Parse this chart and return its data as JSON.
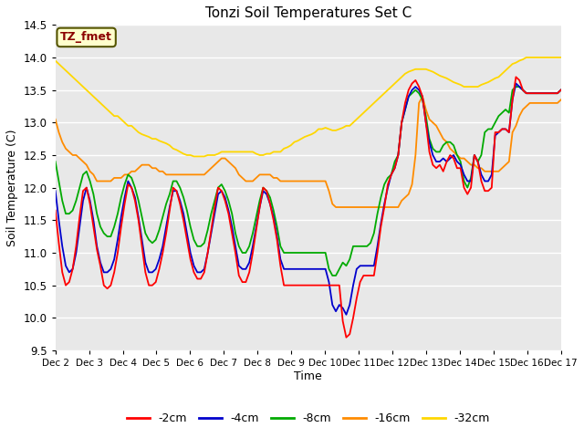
{
  "title": "Tonzi Soil Temperatures Set C",
  "xlabel": "Time",
  "ylabel": "Soil Temperature (C)",
  "ylim": [
    9.5,
    14.5
  ],
  "xlim": [
    0,
    15
  ],
  "xtick_labels": [
    "Dec 2",
    "Dec 3",
    "Dec 4",
    "Dec 5",
    "Dec 6",
    "Dec 7",
    "Dec 8",
    "Dec 9",
    "Dec 10",
    "Dec 11",
    "Dec 12",
    "Dec 13",
    "Dec 14",
    "Dec 15",
    "Dec 16",
    "Dec 17"
  ],
  "ytick_vals": [
    9.5,
    10.0,
    10.5,
    11.0,
    11.5,
    12.0,
    12.5,
    13.0,
    13.5,
    14.0,
    14.5
  ],
  "annotation_text": "TZ_fmet",
  "annotation_color": "#8B0000",
  "annotation_bg": "#FFFFCC",
  "annotation_border": "#555500",
  "bg_color": "#E8E8E8",
  "colors": {
    "-2cm": "#FF0000",
    "-4cm": "#0000CC",
    "-8cm": "#00AA00",
    "-16cm": "#FF8C00",
    "-32cm": "#FFD700"
  },
  "legend_labels": [
    "-2cm",
    "-4cm",
    "-8cm",
    "-16cm",
    "-32cm"
  ],
  "t_2cm": [
    11.65,
    11.15,
    10.7,
    10.5,
    10.55,
    10.75,
    11.1,
    11.55,
    11.95,
    12.0,
    11.75,
    11.4,
    11.05,
    10.8,
    10.5,
    10.45,
    10.5,
    10.7,
    11.0,
    11.4,
    11.75,
    12.05,
    12.0,
    11.8,
    11.5,
    11.1,
    10.7,
    10.5,
    10.5,
    10.55,
    10.75,
    11.0,
    11.3,
    11.65,
    12.0,
    11.95,
    11.75,
    11.5,
    11.2,
    10.9,
    10.7,
    10.6,
    10.6,
    10.7,
    11.0,
    11.35,
    11.7,
    12.0,
    11.95,
    11.8,
    11.6,
    11.3,
    11.0,
    10.65,
    10.55,
    10.55,
    10.7,
    11.0,
    11.35,
    11.7,
    12.0,
    11.95,
    11.75,
    11.5,
    11.2,
    10.8,
    10.5,
    10.5,
    10.5,
    10.5,
    10.5,
    10.5,
    10.5,
    10.5,
    10.5,
    10.5,
    10.5,
    10.5,
    10.5,
    10.5,
    10.5,
    10.5,
    10.5,
    9.95,
    9.7,
    9.75,
    10.0,
    10.3,
    10.55,
    10.65,
    10.65,
    10.65,
    10.65,
    11.0,
    11.4,
    11.7,
    12.05,
    12.2,
    12.3,
    12.5,
    13.0,
    13.3,
    13.5,
    13.6,
    13.65,
    13.55,
    13.4,
    13.0,
    12.55,
    12.35,
    12.3,
    12.35,
    12.25,
    12.4,
    12.5,
    12.45,
    12.3,
    12.3,
    12.0,
    11.9,
    12.0,
    12.5,
    12.4,
    12.1,
    11.95,
    11.95,
    12.0,
    12.85,
    12.85,
    12.9,
    12.9,
    12.85,
    13.35,
    13.7,
    13.65,
    13.5,
    13.45,
    13.45,
    13.45,
    13.45,
    13.45,
    13.45,
    13.45,
    13.45,
    13.45,
    13.45,
    13.5
  ],
  "t_4cm": [
    11.95,
    11.5,
    11.1,
    10.8,
    10.7,
    10.75,
    11.0,
    11.4,
    11.8,
    12.0,
    11.8,
    11.5,
    11.1,
    10.85,
    10.7,
    10.7,
    10.75,
    10.9,
    11.2,
    11.55,
    11.85,
    12.1,
    12.0,
    11.85,
    11.55,
    11.2,
    10.85,
    10.7,
    10.7,
    10.75,
    10.9,
    11.1,
    11.4,
    11.7,
    11.95,
    11.95,
    11.8,
    11.6,
    11.3,
    11.0,
    10.8,
    10.7,
    10.7,
    10.75,
    11.0,
    11.3,
    11.6,
    11.9,
    11.95,
    11.85,
    11.65,
    11.4,
    11.1,
    10.8,
    10.75,
    10.75,
    10.85,
    11.1,
    11.4,
    11.7,
    11.95,
    11.9,
    11.75,
    11.55,
    11.25,
    10.9,
    10.75,
    10.75,
    10.75,
    10.75,
    10.75,
    10.75,
    10.75,
    10.75,
    10.75,
    10.75,
    10.75,
    10.75,
    10.75,
    10.55,
    10.2,
    10.1,
    10.2,
    10.15,
    10.05,
    10.2,
    10.5,
    10.75,
    10.8,
    10.8,
    10.8,
    10.8,
    10.8,
    11.1,
    11.45,
    11.75,
    12.0,
    12.2,
    12.3,
    12.5,
    13.0,
    13.2,
    13.4,
    13.5,
    13.55,
    13.5,
    13.4,
    13.0,
    12.7,
    12.5,
    12.4,
    12.4,
    12.45,
    12.4,
    12.45,
    12.5,
    12.4,
    12.35,
    12.2,
    12.1,
    12.1,
    12.5,
    12.4,
    12.2,
    12.1,
    12.1,
    12.2,
    12.8,
    12.85,
    12.9,
    12.9,
    12.85,
    13.35,
    13.6,
    13.55,
    13.5,
    13.45,
    13.45,
    13.45,
    13.45,
    13.45,
    13.45,
    13.45,
    13.45,
    13.45,
    13.45,
    13.5
  ],
  "t_8cm": [
    12.4,
    12.1,
    11.8,
    11.6,
    11.6,
    11.65,
    11.8,
    12.0,
    12.2,
    12.25,
    12.1,
    11.9,
    11.6,
    11.4,
    11.3,
    11.25,
    11.25,
    11.4,
    11.6,
    11.85,
    12.05,
    12.2,
    12.15,
    12.0,
    11.8,
    11.55,
    11.3,
    11.2,
    11.15,
    11.2,
    11.35,
    11.55,
    11.75,
    11.9,
    12.1,
    12.1,
    12.0,
    11.85,
    11.65,
    11.4,
    11.2,
    11.1,
    11.1,
    11.15,
    11.35,
    11.6,
    11.8,
    12.0,
    12.05,
    11.95,
    11.8,
    11.6,
    11.3,
    11.1,
    11.0,
    11.0,
    11.1,
    11.3,
    11.55,
    11.8,
    12.0,
    11.95,
    11.85,
    11.65,
    11.4,
    11.1,
    11.0,
    11.0,
    11.0,
    11.0,
    11.0,
    11.0,
    11.0,
    11.0,
    11.0,
    11.0,
    11.0,
    11.0,
    11.0,
    10.75,
    10.65,
    10.65,
    10.75,
    10.85,
    10.8,
    10.9,
    11.1,
    11.1,
    11.1,
    11.1,
    11.1,
    11.15,
    11.3,
    11.6,
    11.85,
    12.05,
    12.15,
    12.2,
    12.4,
    12.5,
    13.0,
    13.2,
    13.4,
    13.45,
    13.5,
    13.45,
    13.35,
    13.1,
    12.75,
    12.6,
    12.55,
    12.55,
    12.65,
    12.7,
    12.7,
    12.65,
    12.5,
    12.4,
    12.1,
    12.0,
    12.15,
    12.5,
    12.4,
    12.5,
    12.85,
    12.9,
    12.9,
    13.0,
    13.1,
    13.15,
    13.2,
    13.15,
    13.5,
    13.55,
    13.55,
    13.5,
    13.45,
    13.45,
    13.45,
    13.45,
    13.45,
    13.45,
    13.45,
    13.45,
    13.45,
    13.45,
    13.5
  ],
  "t_16cm": [
    13.05,
    12.85,
    12.7,
    12.6,
    12.55,
    12.5,
    12.5,
    12.45,
    12.4,
    12.35,
    12.25,
    12.2,
    12.1,
    12.1,
    12.1,
    12.1,
    12.1,
    12.15,
    12.15,
    12.15,
    12.2,
    12.2,
    12.25,
    12.25,
    12.3,
    12.35,
    12.35,
    12.35,
    12.3,
    12.3,
    12.25,
    12.25,
    12.2,
    12.2,
    12.2,
    12.2,
    12.2,
    12.2,
    12.2,
    12.2,
    12.2,
    12.2,
    12.2,
    12.2,
    12.25,
    12.3,
    12.35,
    12.4,
    12.45,
    12.45,
    12.4,
    12.35,
    12.3,
    12.2,
    12.15,
    12.1,
    12.1,
    12.1,
    12.15,
    12.2,
    12.2,
    12.2,
    12.2,
    12.15,
    12.15,
    12.1,
    12.1,
    12.1,
    12.1,
    12.1,
    12.1,
    12.1,
    12.1,
    12.1,
    12.1,
    12.1,
    12.1,
    12.1,
    12.1,
    11.95,
    11.75,
    11.7,
    11.7,
    11.7,
    11.7,
    11.7,
    11.7,
    11.7,
    11.7,
    11.7,
    11.7,
    11.7,
    11.7,
    11.7,
    11.7,
    11.7,
    11.7,
    11.7,
    11.7,
    11.7,
    11.8,
    11.85,
    11.9,
    12.05,
    12.5,
    13.3,
    13.4,
    13.2,
    13.05,
    13.0,
    12.95,
    12.85,
    12.75,
    12.7,
    12.6,
    12.55,
    12.5,
    12.45,
    12.45,
    12.4,
    12.35,
    12.35,
    12.3,
    12.3,
    12.25,
    12.25,
    12.25,
    12.25,
    12.25,
    12.3,
    12.35,
    12.4,
    12.85,
    12.95,
    13.1,
    13.2,
    13.25,
    13.3,
    13.3,
    13.3,
    13.3,
    13.3,
    13.3,
    13.3,
    13.3,
    13.3,
    13.35
  ],
  "t_32cm": [
    13.95,
    13.9,
    13.85,
    13.8,
    13.75,
    13.7,
    13.65,
    13.6,
    13.55,
    13.5,
    13.45,
    13.4,
    13.35,
    13.3,
    13.25,
    13.2,
    13.15,
    13.1,
    13.1,
    13.05,
    13.0,
    12.95,
    12.95,
    12.9,
    12.85,
    12.82,
    12.8,
    12.78,
    12.75,
    12.75,
    12.72,
    12.7,
    12.68,
    12.65,
    12.6,
    12.58,
    12.55,
    12.52,
    12.5,
    12.5,
    12.48,
    12.48,
    12.48,
    12.48,
    12.5,
    12.5,
    12.5,
    12.52,
    12.55,
    12.55,
    12.55,
    12.55,
    12.55,
    12.55,
    12.55,
    12.55,
    12.55,
    12.55,
    12.52,
    12.5,
    12.5,
    12.52,
    12.52,
    12.55,
    12.55,
    12.55,
    12.6,
    12.62,
    12.65,
    12.7,
    12.72,
    12.75,
    12.78,
    12.8,
    12.82,
    12.85,
    12.9,
    12.9,
    12.92,
    12.9,
    12.88,
    12.88,
    12.9,
    12.92,
    12.95,
    12.95,
    13.0,
    13.05,
    13.1,
    13.15,
    13.2,
    13.25,
    13.3,
    13.35,
    13.4,
    13.45,
    13.5,
    13.55,
    13.6,
    13.65,
    13.7,
    13.75,
    13.78,
    13.8,
    13.82,
    13.82,
    13.82,
    13.82,
    13.8,
    13.78,
    13.75,
    13.72,
    13.7,
    13.68,
    13.65,
    13.62,
    13.6,
    13.58,
    13.55,
    13.55,
    13.55,
    13.55,
    13.55,
    13.58,
    13.6,
    13.62,
    13.65,
    13.68,
    13.7,
    13.75,
    13.8,
    13.85,
    13.9,
    13.92,
    13.95,
    13.97,
    14.0,
    14.0,
    14.0,
    14.0,
    14.0,
    14.0,
    14.0,
    14.0,
    14.0,
    14.0,
    14.0
  ]
}
